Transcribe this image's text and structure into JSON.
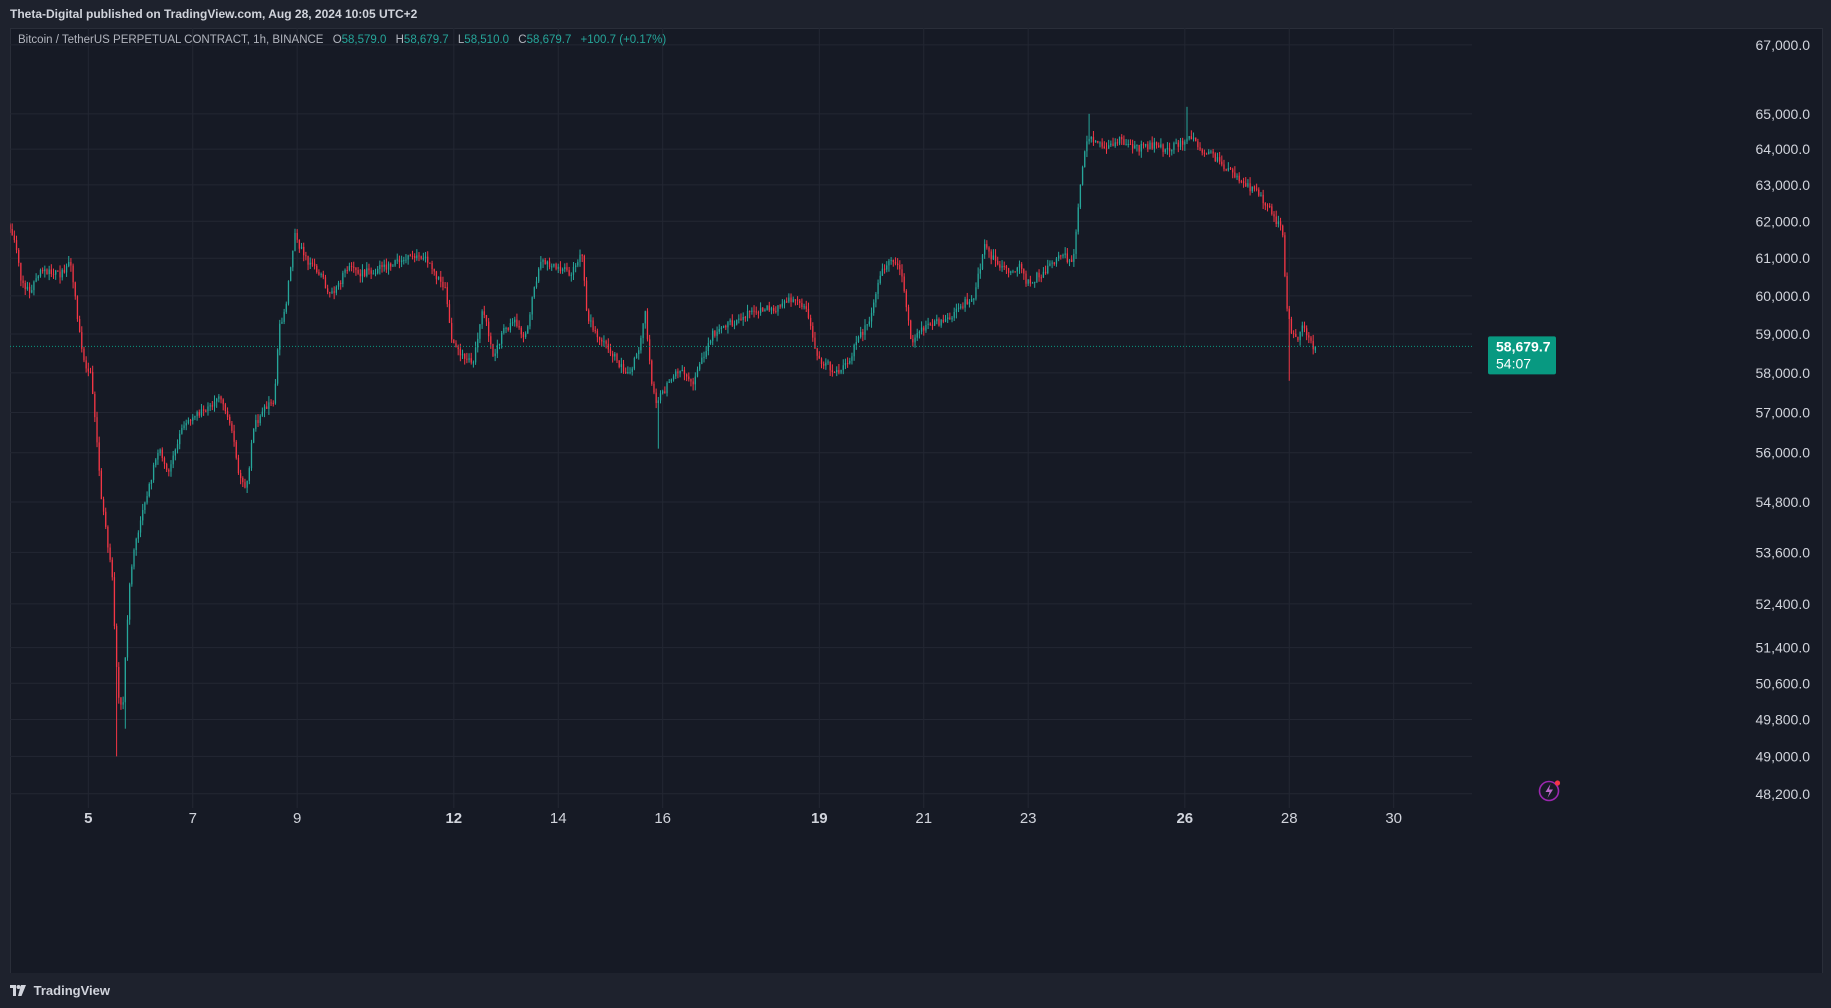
{
  "header": {
    "published": "Theta-Digital published on TradingView.com, Aug 28, 2024 10:05 UTC+2"
  },
  "legend": {
    "symbol": "Bitcoin / TetherUS PERPETUAL CONTRACT, 1h, BINANCE",
    "o_label": "O",
    "o_value": "58,579.0",
    "h_label": "H",
    "h_value": "58,679.7",
    "l_label": "L",
    "l_value": "58,510.0",
    "c_label": "C",
    "c_value": "58,679.7",
    "change": "+100.7 (+0.17%)"
  },
  "last_price": {
    "price": "58,679.7",
    "countdown": "54:07",
    "color": "#089981"
  },
  "footer": {
    "brand": "TradingView"
  },
  "icons": {
    "alert": "lightning-alert-icon",
    "logo": "tradingview-logo-icon"
  },
  "colors": {
    "up": "#26a69a",
    "down": "#f23645",
    "background": "#161a25",
    "grid": "#232733",
    "accent": "#089981"
  },
  "chart_data": {
    "type": "candlestick",
    "title": "Bitcoin / TetherUS PERPETUAL CONTRACT, 1h, BINANCE",
    "xlabel": "",
    "ylabel": "",
    "y_scale": "log",
    "ylim": [
      47900,
      67500
    ],
    "y_ticks": [
      48200,
      49000,
      49800,
      50600,
      51400,
      52400,
      53600,
      54800,
      56000,
      57000,
      58000,
      59000,
      60000,
      61000,
      62000,
      63000,
      64000,
      65000,
      67000
    ],
    "y_tick_labels": [
      "48,200.0",
      "49,000.0",
      "49,800.0",
      "50,600.0",
      "51,400.0",
      "52,400.0",
      "53,600.0",
      "54,800.0",
      "56,000.0",
      "57,000.0",
      "58,000.0",
      "59,000.0",
      "60,000.0",
      "61,000.0",
      "62,000.0",
      "63,000.0",
      "64,000.0",
      "65,000.0",
      "67,000.0"
    ],
    "x_ticks": [
      {
        "day": 5,
        "label": "5",
        "bold": true
      },
      {
        "day": 7,
        "label": "7",
        "bold": false
      },
      {
        "day": 9,
        "label": "9",
        "bold": false
      },
      {
        "day": 12,
        "label": "12",
        "bold": true
      },
      {
        "day": 14,
        "label": "14",
        "bold": false
      },
      {
        "day": 16,
        "label": "16",
        "bold": false
      },
      {
        "day": 19,
        "label": "19",
        "bold": true
      },
      {
        "day": 21,
        "label": "21",
        "bold": false
      },
      {
        "day": 23,
        "label": "23",
        "bold": false
      },
      {
        "day": 26,
        "label": "26",
        "bold": true
      },
      {
        "day": 28,
        "label": "28",
        "bold": false
      },
      {
        "day": 30,
        "label": "30",
        "bold": false
      }
    ],
    "x_range_days": [
      3.5,
      31.5
    ],
    "grid": true,
    "last_price": 58679.7,
    "series": [
      {
        "interval": "1h",
        "path": [
          [
            3.5,
            61900
          ],
          [
            3.65,
            61500
          ],
          [
            3.75,
            60400
          ],
          [
            3.9,
            60100
          ],
          [
            4.1,
            60600
          ],
          [
            4.3,
            60700
          ],
          [
            4.5,
            60500
          ],
          [
            4.7,
            60900
          ],
          [
            4.8,
            59800
          ],
          [
            4.9,
            58700
          ],
          [
            5.0,
            58200
          ],
          [
            5.1,
            57900
          ],
          [
            5.15,
            57100
          ],
          [
            5.3,
            54800
          ],
          [
            5.5,
            53000
          ],
          [
            5.6,
            50500
          ],
          [
            5.7,
            49900
          ],
          [
            5.75,
            51200
          ],
          [
            5.85,
            53200
          ],
          [
            6.0,
            54100
          ],
          [
            6.2,
            55200
          ],
          [
            6.4,
            56100
          ],
          [
            6.6,
            55500
          ],
          [
            6.8,
            56500
          ],
          [
            7.0,
            56800
          ],
          [
            7.2,
            57000
          ],
          [
            7.4,
            57100
          ],
          [
            7.6,
            57400
          ],
          [
            7.8,
            56600
          ],
          [
            7.9,
            55600
          ],
          [
            8.0,
            55200
          ],
          [
            8.1,
            55300
          ],
          [
            8.2,
            56600
          ],
          [
            8.4,
            57100
          ],
          [
            8.6,
            57300
          ],
          [
            8.7,
            59300
          ],
          [
            8.8,
            59500
          ],
          [
            8.9,
            60600
          ],
          [
            9.0,
            61600
          ],
          [
            9.2,
            61000
          ],
          [
            9.5,
            60500
          ],
          [
            9.7,
            60000
          ],
          [
            10.0,
            60700
          ],
          [
            10.3,
            60600
          ],
          [
            10.6,
            60700
          ],
          [
            10.9,
            60900
          ],
          [
            11.2,
            61000
          ],
          [
            11.5,
            61000
          ],
          [
            11.7,
            60500
          ],
          [
            11.9,
            60100
          ],
          [
            12.0,
            58800
          ],
          [
            12.2,
            58500
          ],
          [
            12.4,
            58200
          ],
          [
            12.6,
            59700
          ],
          [
            12.8,
            58400
          ],
          [
            13.0,
            59100
          ],
          [
            13.2,
            59300
          ],
          [
            13.4,
            58800
          ],
          [
            13.5,
            59600
          ],
          [
            13.7,
            60900
          ],
          [
            14.0,
            60800
          ],
          [
            14.3,
            60600
          ],
          [
            14.5,
            61100
          ],
          [
            14.6,
            59400
          ],
          [
            14.8,
            59000
          ],
          [
            15.0,
            58700
          ],
          [
            15.2,
            58200
          ],
          [
            15.4,
            58000
          ],
          [
            15.6,
            58700
          ],
          [
            15.7,
            59700
          ],
          [
            15.8,
            58100
          ],
          [
            15.9,
            57200
          ],
          [
            16.0,
            57400
          ],
          [
            16.2,
            57800
          ],
          [
            16.4,
            58100
          ],
          [
            16.6,
            57700
          ],
          [
            16.8,
            58400
          ],
          [
            17.0,
            59000
          ],
          [
            17.2,
            59200
          ],
          [
            17.4,
            59300
          ],
          [
            17.6,
            59500
          ],
          [
            17.8,
            59600
          ],
          [
            18.0,
            59700
          ],
          [
            18.2,
            59600
          ],
          [
            18.5,
            59900
          ],
          [
            18.8,
            59700
          ],
          [
            19.0,
            58400
          ],
          [
            19.2,
            58200
          ],
          [
            19.4,
            58000
          ],
          [
            19.6,
            58300
          ],
          [
            19.8,
            58900
          ],
          [
            20.0,
            59300
          ],
          [
            20.2,
            60600
          ],
          [
            20.4,
            60900
          ],
          [
            20.6,
            60800
          ],
          [
            20.7,
            59800
          ],
          [
            20.8,
            58700
          ],
          [
            21.0,
            59100
          ],
          [
            21.3,
            59300
          ],
          [
            21.6,
            59500
          ],
          [
            21.8,
            59800
          ],
          [
            22.0,
            60000
          ],
          [
            22.2,
            61300
          ],
          [
            22.5,
            60800
          ],
          [
            22.7,
            60600
          ],
          [
            22.9,
            60900
          ],
          [
            23.0,
            60300
          ],
          [
            23.2,
            60500
          ],
          [
            23.5,
            60800
          ],
          [
            23.7,
            61100
          ],
          [
            23.9,
            60800
          ],
          [
            24.0,
            62400
          ],
          [
            24.1,
            63800
          ],
          [
            24.2,
            64300
          ],
          [
            24.5,
            64000
          ],
          [
            24.8,
            64300
          ],
          [
            25.1,
            64000
          ],
          [
            25.4,
            64100
          ],
          [
            25.7,
            64000
          ],
          [
            26.0,
            64200
          ],
          [
            26.2,
            64300
          ],
          [
            26.4,
            63900
          ],
          [
            26.6,
            63800
          ],
          [
            26.8,
            63500
          ],
          [
            27.0,
            63300
          ],
          [
            27.2,
            63000
          ],
          [
            27.4,
            62800
          ],
          [
            27.6,
            62500
          ],
          [
            27.8,
            61900
          ],
          [
            27.9,
            62000
          ],
          [
            28.0,
            59600
          ],
          [
            28.1,
            59000
          ],
          [
            28.2,
            58800
          ],
          [
            28.3,
            59200
          ],
          [
            28.4,
            59000
          ],
          [
            28.5,
            58679.7
          ]
        ]
      }
    ]
  }
}
